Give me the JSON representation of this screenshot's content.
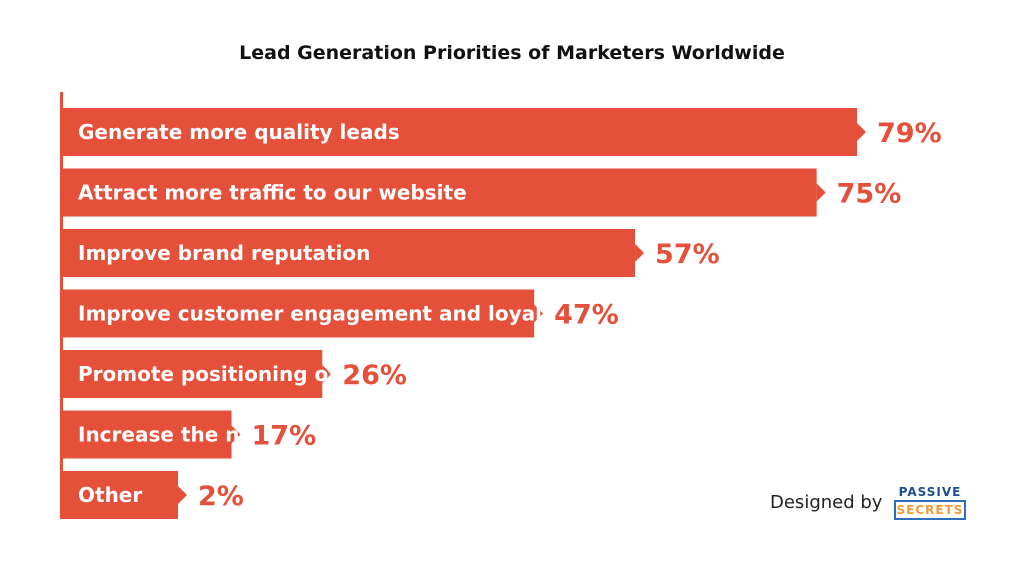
{
  "chart_data": {
    "type": "bar",
    "orientation": "horizontal",
    "title": "Lead Generation Priorities of Marketers Worldwide",
    "categories": [
      "Generate more quality leads",
      "Attract more traffic to our website",
      "Improve brand reputation",
      "Improve customer engagement and loyalty",
      "Promote positioning of new products",
      "Increase the number of payments",
      "Other"
    ],
    "values": [
      79,
      75,
      57,
      47,
      26,
      17,
      2
    ],
    "value_labels": [
      "79%",
      "75%",
      "57%",
      "47%",
      "26%",
      "17%",
      "2%"
    ],
    "unit": "%",
    "color": "#e4503a",
    "grid": false,
    "legend": "none"
  },
  "credit": {
    "text": "Designed by",
    "logo_line1": "PASSIVE",
    "logo_line2": "SECRETS"
  }
}
